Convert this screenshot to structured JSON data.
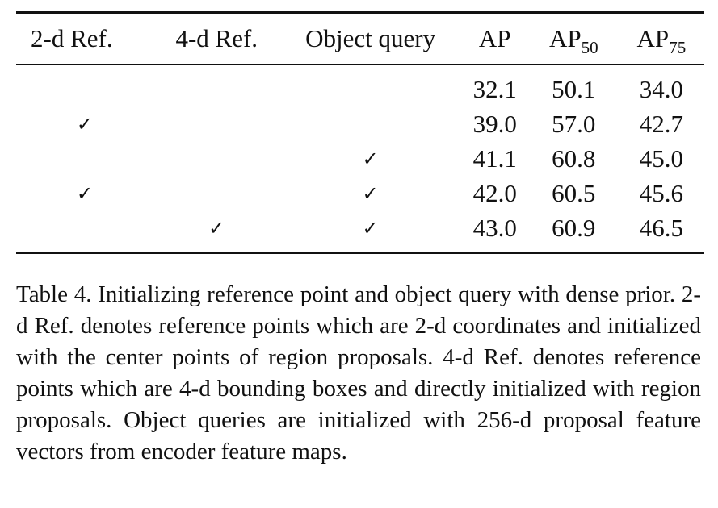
{
  "table": {
    "headers": {
      "col1": "2-d Ref.",
      "col2": "4-d Ref.",
      "col3": "Object query",
      "col4": "AP",
      "col5_base": "AP",
      "col5_sub": "50",
      "col6_base": "AP",
      "col6_sub": "75"
    },
    "check_glyph": "✓",
    "rows": [
      {
        "ref2d": "",
        "ref4d": "",
        "query": "",
        "ap": "32.1",
        "ap50": "50.1",
        "ap75": "34.0"
      },
      {
        "ref2d": "✓",
        "ref4d": "",
        "query": "",
        "ap": "39.0",
        "ap50": "57.0",
        "ap75": "42.7"
      },
      {
        "ref2d": "",
        "ref4d": "",
        "query": "✓",
        "ap": "41.1",
        "ap50": "60.8",
        "ap75": "45.0"
      },
      {
        "ref2d": "✓",
        "ref4d": "",
        "query": "✓",
        "ap": "42.0",
        "ap50": "60.5",
        "ap75": "45.6"
      },
      {
        "ref2d": "",
        "ref4d": "✓",
        "query": "✓",
        "ap": "43.0",
        "ap50": "60.9",
        "ap75": "46.5"
      }
    ]
  },
  "caption": "Table 4. Initializing reference point and object query with dense prior. 2-d Ref. denotes reference points which are 2-d coordinates and initialized with the center points of region proposals. 4-d Ref. denotes reference points which are 4-d bounding boxes and directly initialized with region proposals. Object queries are initialized with 256-d proposal feature vectors from encoder feature maps."
}
